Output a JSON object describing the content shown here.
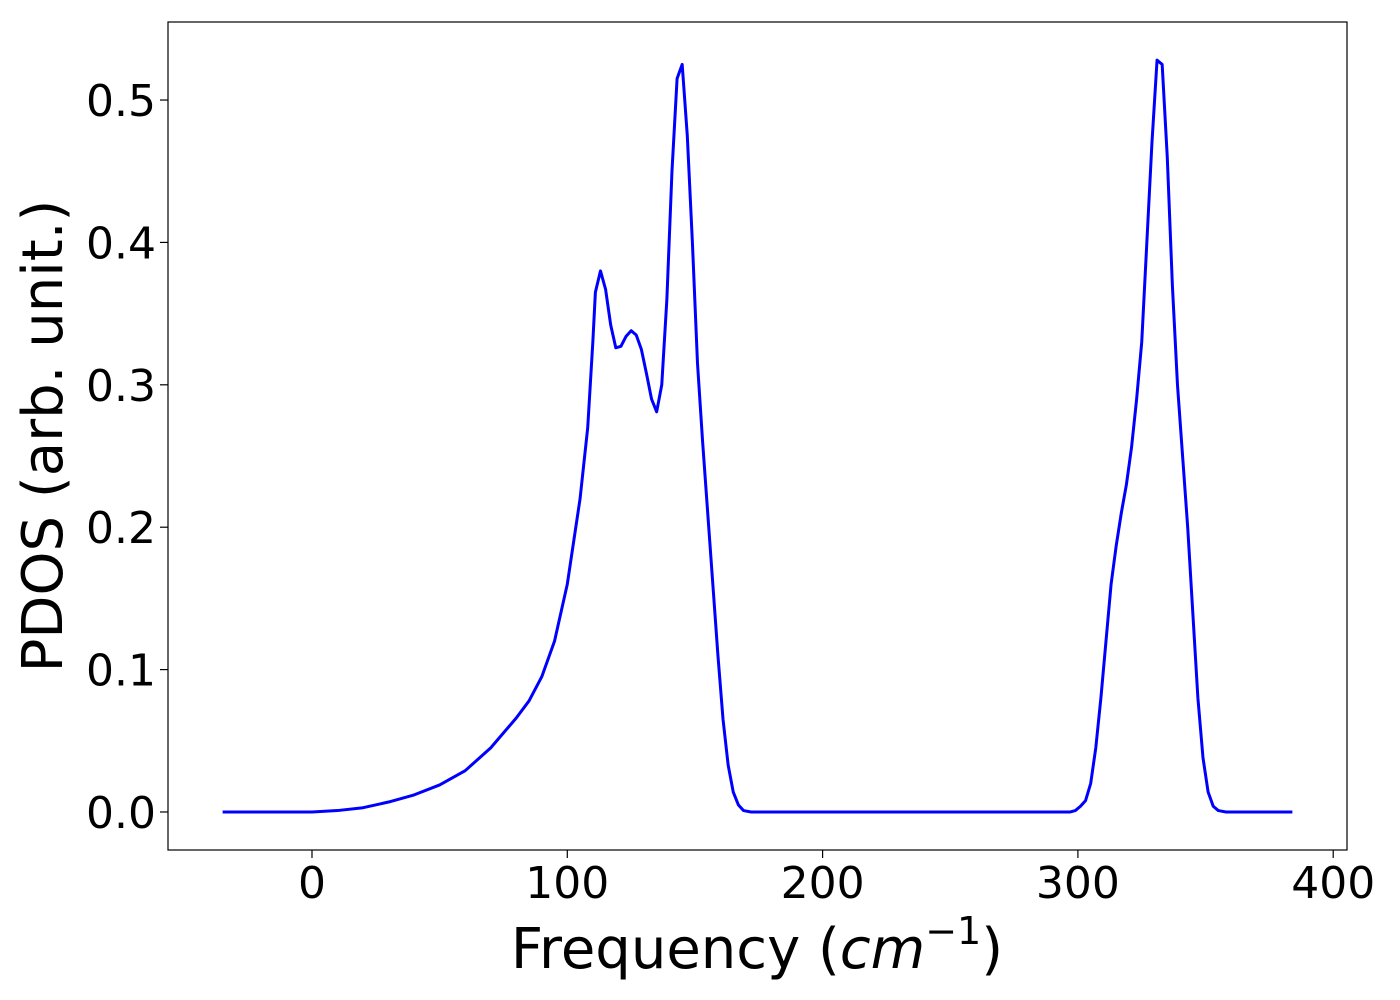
{
  "chart_data": {
    "type": "line",
    "xlabel": [
      "Frequency (",
      "cm",
      "−1",
      ")"
    ],
    "ylabel": "PDOS (arb. unit.)",
    "xlim": [
      -56.4,
      405.4
    ],
    "ylim": [
      -0.0267,
      0.5548
    ],
    "xticks": [
      0,
      100,
      200,
      300,
      400
    ],
    "yticks": [
      {
        "value": 0,
        "label": "0.0"
      },
      0.1,
      0.2,
      0.3,
      0.4,
      0.5
    ],
    "series": [
      {
        "color": "#0000ff",
        "x": [
          -35,
          0,
          10,
          20,
          30,
          40,
          50,
          60,
          70,
          80,
          85,
          90,
          95,
          100,
          105,
          108,
          110,
          111,
          113,
          115,
          117,
          119,
          121,
          123,
          125,
          127,
          129,
          131,
          133,
          135,
          137,
          139,
          141,
          143,
          145,
          147,
          149,
          151,
          153,
          155,
          157,
          159,
          161,
          163,
          165,
          167,
          169,
          172,
          200,
          250,
          297,
          299,
          301,
          303,
          305,
          307,
          309,
          311,
          313,
          315,
          317,
          319,
          321,
          323,
          325,
          327,
          329,
          331,
          333,
          335,
          337,
          339,
          341,
          343,
          345,
          347,
          349,
          351,
          353,
          355,
          358,
          384
        ],
        "values": [
          0,
          0,
          0.001,
          0.003,
          0.007,
          0.012,
          0.019,
          0.029,
          0.045,
          0.066,
          0.078,
          0.095,
          0.12,
          0.16,
          0.22,
          0.27,
          0.33,
          0.365,
          0.38,
          0.367,
          0.342,
          0.326,
          0.327,
          0.334,
          0.338,
          0.335,
          0.325,
          0.308,
          0.29,
          0.281,
          0.3,
          0.36,
          0.45,
          0.515,
          0.525,
          0.475,
          0.4,
          0.315,
          0.26,
          0.21,
          0.16,
          0.11,
          0.065,
          0.033,
          0.014,
          0.005,
          0.001,
          0,
          0,
          0,
          0,
          0.001,
          0.004,
          0.008,
          0.02,
          0.045,
          0.08,
          0.12,
          0.16,
          0.187,
          0.21,
          0.23,
          0.256,
          0.29,
          0.33,
          0.4,
          0.47,
          0.528,
          0.525,
          0.46,
          0.37,
          0.3,
          0.25,
          0.2,
          0.14,
          0.08,
          0.038,
          0.014,
          0.004,
          0.001,
          0,
          0
        ]
      }
    ]
  }
}
